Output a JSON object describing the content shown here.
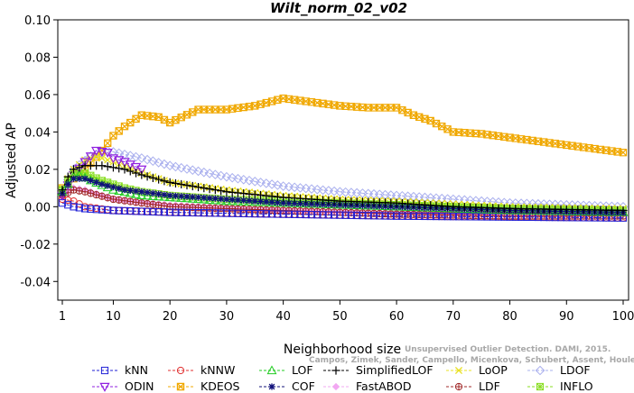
{
  "chart_data": {
    "type": "line",
    "title": "Wilt_norm_02_v02",
    "xlabel": "Neighborhood size",
    "ylabel": "Adjusted AP",
    "xlim": [
      1,
      100
    ],
    "ylim": [
      -0.05,
      0.1
    ],
    "xticks": [
      1,
      10,
      20,
      30,
      40,
      50,
      60,
      70,
      80,
      90,
      100
    ],
    "yticks": [
      "0.10",
      "0.08",
      "0.06",
      "0.04",
      "0.02",
      "0.00",
      "-0.02",
      "-0.04"
    ],
    "ytick_values": [
      0.1,
      0.08,
      0.06,
      0.04,
      0.02,
      0.0,
      -0.02,
      -0.04
    ],
    "grid": false,
    "legend_position": "bottom",
    "series": [
      {
        "name": "kNN",
        "color": "#1f1fd6",
        "marker": "square",
        "points": [
          [
            1,
            0.002
          ],
          [
            3,
            0.0
          ],
          [
            5,
            -0.001
          ],
          [
            10,
            -0.002
          ],
          [
            20,
            -0.003
          ],
          [
            40,
            -0.004
          ],
          [
            60,
            -0.005
          ],
          [
            80,
            -0.0055
          ],
          [
            100,
            -0.006
          ]
        ]
      },
      {
        "name": "kNNW",
        "color": "#e03030",
        "marker": "circle",
        "points": [
          [
            1,
            0.004
          ],
          [
            3,
            0.003
          ],
          [
            5,
            0.0
          ],
          [
            10,
            -0.002
          ],
          [
            20,
            -0.003
          ],
          [
            40,
            -0.004
          ],
          [
            60,
            -0.005
          ],
          [
            80,
            -0.0055
          ],
          [
            100,
            -0.006
          ]
        ]
      },
      {
        "name": "LOF",
        "color": "#22cc22",
        "marker": "triangle-up",
        "points": [
          [
            1,
            0.008
          ],
          [
            2,
            0.012
          ],
          [
            3,
            0.016
          ],
          [
            4,
            0.017
          ],
          [
            6,
            0.014
          ],
          [
            10,
            0.009
          ],
          [
            15,
            0.006
          ],
          [
            20,
            0.005
          ],
          [
            30,
            0.003
          ],
          [
            40,
            0.002
          ],
          [
            60,
            0.0
          ],
          [
            80,
            -0.002
          ],
          [
            100,
            -0.003
          ]
        ]
      },
      {
        "name": "SimplifiedLOF",
        "color": "#000000",
        "marker": "plus",
        "points": [
          [
            1,
            0.009
          ],
          [
            2,
            0.016
          ],
          [
            3,
            0.02
          ],
          [
            5,
            0.022
          ],
          [
            8,
            0.022
          ],
          [
            12,
            0.02
          ],
          [
            15,
            0.017
          ],
          [
            20,
            0.013
          ],
          [
            30,
            0.008
          ],
          [
            40,
            0.005
          ],
          [
            50,
            0.003
          ],
          [
            60,
            0.002
          ],
          [
            70,
            0.0
          ],
          [
            80,
            -0.001
          ],
          [
            100,
            -0.002
          ]
        ]
      },
      {
        "name": "LoOP",
        "color": "#e8e020",
        "marker": "cross",
        "points": [
          [
            1,
            0.01
          ],
          [
            3,
            0.02
          ],
          [
            5,
            0.025
          ],
          [
            7,
            0.027
          ],
          [
            10,
            0.024
          ],
          [
            15,
            0.018
          ],
          [
            20,
            0.013
          ],
          [
            30,
            0.009
          ],
          [
            40,
            0.006
          ],
          [
            50,
            0.004
          ],
          [
            60,
            0.003
          ],
          [
            80,
            0.0
          ],
          [
            100,
            -0.001
          ]
        ]
      },
      {
        "name": "LDOF",
        "color": "#aab0ee",
        "marker": "diamond",
        "points": [
          [
            1,
            0.009
          ],
          [
            3,
            0.02
          ],
          [
            6,
            0.027
          ],
          [
            9,
            0.03
          ],
          [
            12,
            0.028
          ],
          [
            15,
            0.026
          ],
          [
            20,
            0.022
          ],
          [
            30,
            0.016
          ],
          [
            40,
            0.011
          ],
          [
            50,
            0.008
          ],
          [
            60,
            0.006
          ],
          [
            70,
            0.004
          ],
          [
            80,
            0.002
          ],
          [
            100,
            0.0
          ]
        ]
      },
      {
        "name": "ODIN",
        "color": "#9020e0",
        "marker": "triangle-down",
        "points": [
          [
            1,
            0.006
          ],
          [
            3,
            0.017
          ],
          [
            5,
            0.024
          ],
          [
            7,
            0.03
          ],
          [
            9,
            0.029
          ],
          [
            10,
            0.026
          ],
          [
            12,
            0.024
          ],
          [
            15,
            0.02
          ]
        ]
      },
      {
        "name": "KDEOS",
        "color": "#f0a800",
        "marker": "square-x",
        "points": [
          [
            1,
            0.01
          ],
          [
            5,
            0.02
          ],
          [
            8,
            0.03
          ],
          [
            10,
            0.038
          ],
          [
            12,
            0.043
          ],
          [
            15,
            0.049
          ],
          [
            18,
            0.048
          ],
          [
            20,
            0.045
          ],
          [
            25,
            0.052
          ],
          [
            30,
            0.052
          ],
          [
            35,
            0.054
          ],
          [
            40,
            0.058
          ],
          [
            45,
            0.056
          ],
          [
            50,
            0.054
          ],
          [
            55,
            0.053
          ],
          [
            60,
            0.053
          ],
          [
            63,
            0.049
          ],
          [
            66,
            0.046
          ],
          [
            70,
            0.04
          ],
          [
            75,
            0.039
          ],
          [
            80,
            0.037
          ],
          [
            85,
            0.035
          ],
          [
            90,
            0.033
          ],
          [
            95,
            0.031
          ],
          [
            100,
            0.029
          ]
        ]
      },
      {
        "name": "COF",
        "color": "#10107a",
        "marker": "asterisk",
        "points": [
          [
            1,
            0.007
          ],
          [
            2,
            0.012
          ],
          [
            3,
            0.015
          ],
          [
            5,
            0.015
          ],
          [
            8,
            0.012
          ],
          [
            12,
            0.009
          ],
          [
            15,
            0.008
          ],
          [
            20,
            0.006
          ],
          [
            30,
            0.004
          ],
          [
            40,
            0.002
          ],
          [
            60,
            0.0
          ],
          [
            80,
            -0.002
          ],
          [
            100,
            -0.003
          ]
        ]
      },
      {
        "name": "FastABOD",
        "color": "#f2a8f2",
        "marker": "diamond-filled",
        "points": [
          [
            1,
            0.006
          ],
          [
            3,
            0.01
          ],
          [
            5,
            0.009
          ],
          [
            10,
            0.004
          ],
          [
            20,
            0.001
          ],
          [
            40,
            -0.002
          ],
          [
            60,
            -0.003
          ],
          [
            80,
            -0.004
          ],
          [
            100,
            -0.004
          ]
        ]
      },
      {
        "name": "LDF",
        "color": "#a02828",
        "marker": "circle-plus",
        "points": [
          [
            1,
            0.006
          ],
          [
            3,
            0.009
          ],
          [
            5,
            0.008
          ],
          [
            10,
            0.004
          ],
          [
            20,
            0.0
          ],
          [
            40,
            -0.002
          ],
          [
            60,
            -0.004
          ],
          [
            80,
            -0.005
          ],
          [
            100,
            -0.005
          ]
        ]
      },
      {
        "name": "INFLO",
        "color": "#88dd22",
        "marker": "star-box",
        "points": [
          [
            1,
            0.009
          ],
          [
            2,
            0.014
          ],
          [
            3,
            0.018
          ],
          [
            5,
            0.018
          ],
          [
            8,
            0.014
          ],
          [
            12,
            0.01
          ],
          [
            15,
            0.008
          ],
          [
            20,
            0.006
          ],
          [
            30,
            0.004
          ],
          [
            40,
            0.003
          ],
          [
            60,
            0.001
          ],
          [
            80,
            -0.001
          ],
          [
            100,
            -0.002
          ]
        ]
      }
    ]
  },
  "legend": {
    "row1": [
      "kNN",
      "kNNW",
      "LOF",
      "SimplifiedLOF",
      "LoOP",
      "LDOF"
    ],
    "row2": [
      "ODIN",
      "KDEOS",
      "COF",
      "FastABOD",
      "LDF",
      "INFLO"
    ]
  },
  "watermark": {
    "line1": "Unsupervised Outlier Detection. DAMI, 2015.",
    "line2": "Campos, Zimek, Sander, Campello, Micenkova, Schubert, Assent, Houle"
  }
}
